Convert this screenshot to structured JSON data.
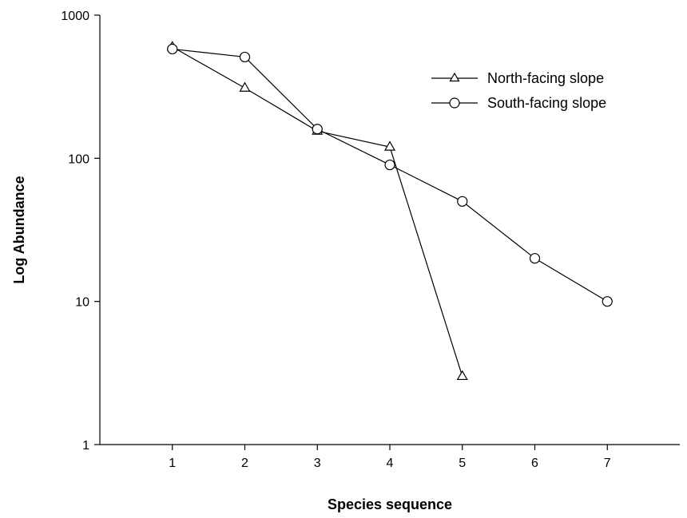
{
  "chart_data": {
    "type": "line",
    "title": "",
    "xlabel": "Species sequence",
    "ylabel": "Log Abundance",
    "yscale": "log",
    "xlim": [
      0,
      8
    ],
    "ylim": [
      1,
      1000
    ],
    "x_ticks": [
      1,
      2,
      3,
      4,
      5,
      6,
      7
    ],
    "x_tick_labels": [
      "1",
      "2",
      "3",
      "4",
      "5",
      "6",
      "7"
    ],
    "y_ticks": [
      1,
      10,
      100,
      1000
    ],
    "y_tick_labels": [
      "1",
      "10",
      "100",
      "1000"
    ],
    "grid": false,
    "legend_position": "top-right",
    "series": [
      {
        "name": "North-facing slope",
        "marker": "triangle",
        "x": [
          1,
          2,
          3,
          4,
          5
        ],
        "values": [
          600,
          310,
          155,
          120,
          3
        ]
      },
      {
        "name": "South-facing slope",
        "marker": "circle",
        "x": [
          1,
          2,
          3,
          4,
          5,
          6,
          7
        ],
        "values": [
          580,
          510,
          160,
          90,
          50,
          20,
          10
        ]
      }
    ],
    "colors": {
      "line": "#000000",
      "marker_fill": "#ffffff"
    }
  }
}
